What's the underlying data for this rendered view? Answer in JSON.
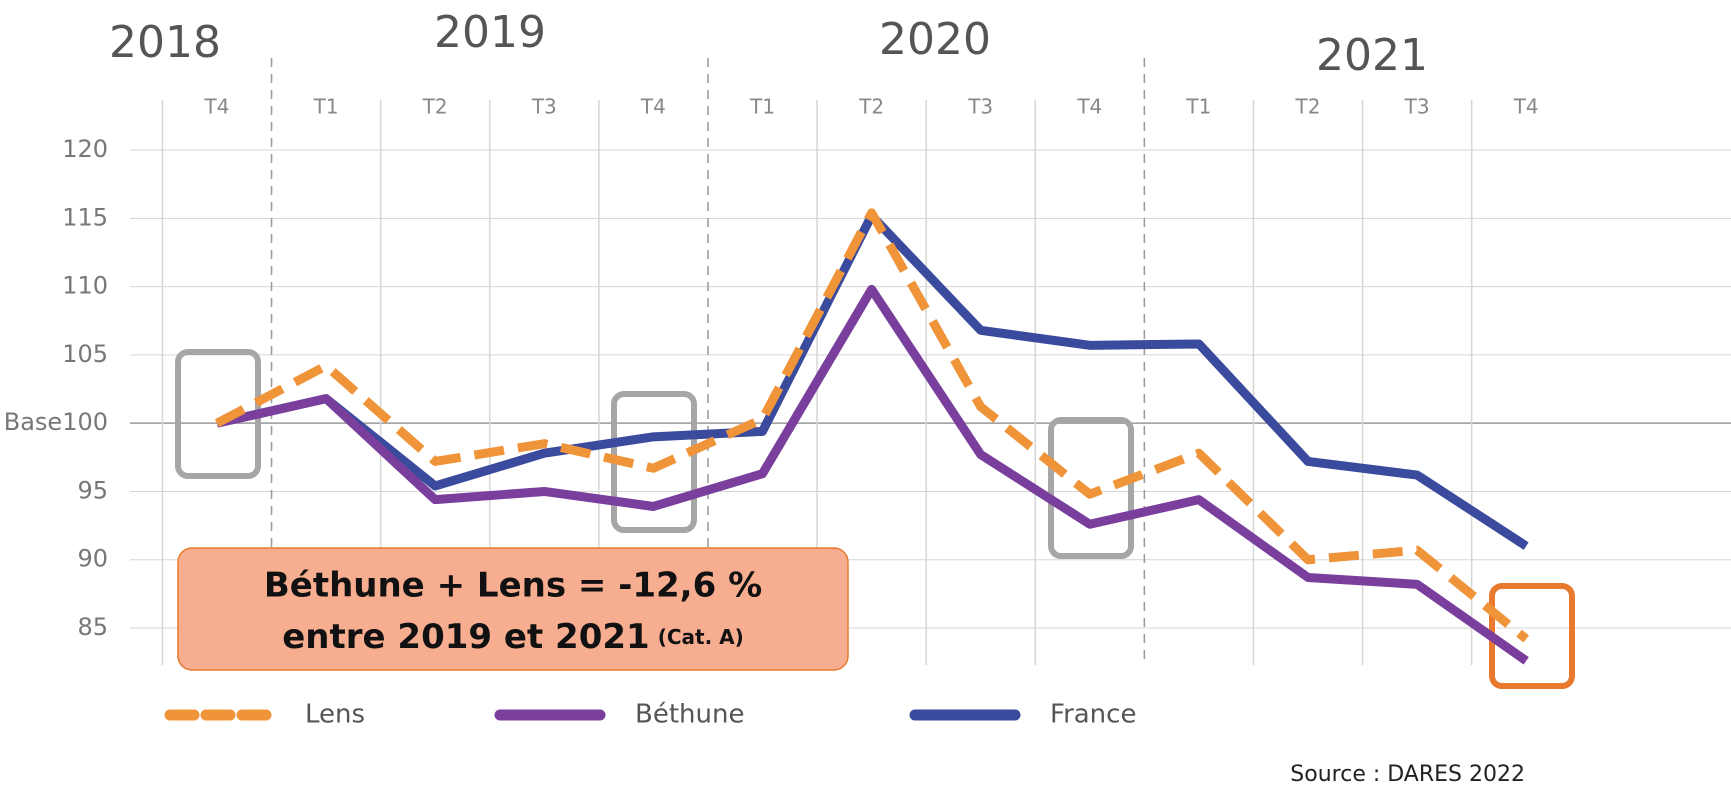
{
  "chart_data": {
    "type": "line",
    "years": [
      "2018",
      "2019",
      "2020",
      "2021"
    ],
    "categories": [
      "T4",
      "T1",
      "T2",
      "T3",
      "T4",
      "T1",
      "T2",
      "T3",
      "T4",
      "T1",
      "T2",
      "T3",
      "T4"
    ],
    "series": [
      {
        "name": "France",
        "color": "#3a4a9c",
        "dashed": false,
        "values": [
          100,
          101.8,
          95.4,
          97.8,
          99,
          99.4,
          115.2,
          106.8,
          105.7,
          105.8,
          97.2,
          96.2,
          91
        ]
      },
      {
        "name": "Béthune",
        "color": "#7a3f9d",
        "dashed": false,
        "values": [
          100,
          101.8,
          94.4,
          95,
          93.9,
          96.3,
          109.8,
          97.7,
          92.6,
          94.4,
          88.7,
          88.2,
          82.6
        ]
      },
      {
        "name": "Lens",
        "color": "#f0943a",
        "dashed": true,
        "values": [
          100,
          104.2,
          97.2,
          98.5,
          96.7,
          100.3,
          115.4,
          101.2,
          94.8,
          97.8,
          90,
          90.7,
          84.2
        ]
      }
    ],
    "legend_order": [
      "Lens",
      "Béthune",
      "France"
    ],
    "ylim": [
      82,
      124
    ],
    "yticks": [
      85,
      90,
      95,
      {
        "value": 100,
        "label": "Base100"
      },
      105,
      110,
      115,
      120
    ],
    "grid": true,
    "annotation": {
      "line1": "Béthune + Lens = -12,6 %",
      "line2": "entre 2019 et 2021",
      "note": "(Cat. A)"
    },
    "source": "Source : DARES 2022"
  }
}
